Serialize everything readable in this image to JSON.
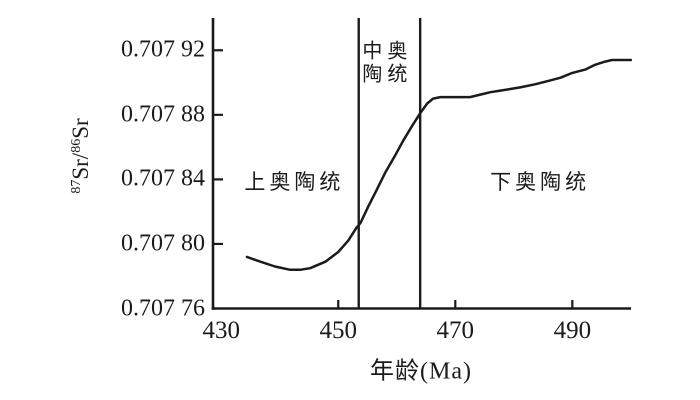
{
  "figure": {
    "background": "#ffffff",
    "ink_color": "#1b1b1b"
  },
  "chart_data": {
    "type": "line",
    "title": "",
    "xlabel": "年龄(Ma)",
    "ylabel": "87Sr/86Sr",
    "ylabel_parts": {
      "sup1": "87",
      "base1": "Sr/",
      "sup2": "86",
      "base2": "Sr"
    },
    "xlim": [
      428.6,
      499.6
    ],
    "ylim": [
      0.70776,
      0.70794
    ],
    "grid": false,
    "legend": null,
    "x_ticks": [
      {
        "value": 430,
        "label": "430",
        "mark": false
      },
      {
        "value": 450,
        "label": "450",
        "mark": true
      },
      {
        "value": 470,
        "label": "470",
        "mark": true
      },
      {
        "value": 490,
        "label": "490",
        "mark": true
      }
    ],
    "y_ticks": [
      {
        "value": 0.70792,
        "label": "0.707 92",
        "mark": true
      },
      {
        "value": 0.70788,
        "label": "0.707 88",
        "mark": true
      },
      {
        "value": 0.70784,
        "label": "0.707 84",
        "mark": true
      },
      {
        "value": 0.7078,
        "label": "0.707 80",
        "mark": true
      },
      {
        "value": 0.70776,
        "label": "0.707 76",
        "mark": false
      }
    ],
    "stage_boundaries_ma": [
      453.5,
      464
    ],
    "series": [
      {
        "name": "87Sr/86Sr",
        "x": [
          434.4,
          436.7,
          439.2,
          441.8,
          443.5,
          445.2,
          447.8,
          450.0,
          451.7,
          453.1,
          453.8,
          455.1,
          456.5,
          458.0,
          459.6,
          461.1,
          462.6,
          464.0,
          465.2,
          466.2,
          467.4,
          470.0,
          472.5,
          474.8,
          476.0,
          477.7,
          479.4,
          481.1,
          483.7,
          485.9,
          488.0,
          490.0,
          492.2,
          493.9,
          495.6,
          496.8,
          500.0
        ],
        "y": [
          0.707792,
          0.707789,
          0.707786,
          0.707784,
          0.707784,
          0.707785,
          0.707789,
          0.707795,
          0.707802,
          0.70781,
          0.707813,
          0.707823,
          0.707833,
          0.707844,
          0.707854,
          0.707864,
          0.707873,
          0.707881,
          0.707887,
          0.70789,
          0.707891,
          0.707891,
          0.707891,
          0.707893,
          0.707894,
          0.707895,
          0.707896,
          0.707897,
          0.707899,
          0.707901,
          0.707903,
          0.707906,
          0.707908,
          0.707911,
          0.707913,
          0.707914,
          0.707914
        ]
      }
    ],
    "annotations": [
      {
        "id": "upper-ordovician",
        "text": "上奥陶统",
        "x": 442.5,
        "y": 0.707838,
        "lines": [
          "上奥陶统"
        ]
      },
      {
        "id": "middle-ordovician",
        "text": "中奥陶统",
        "x": 458.4,
        "y": 0.707912,
        "lines": [
          "中奥",
          "陶统"
        ]
      },
      {
        "id": "lower-ordovician",
        "text": "下奥陶统",
        "x": 484.5,
        "y": 0.707838,
        "lines": [
          "下奥陶统"
        ]
      }
    ]
  }
}
